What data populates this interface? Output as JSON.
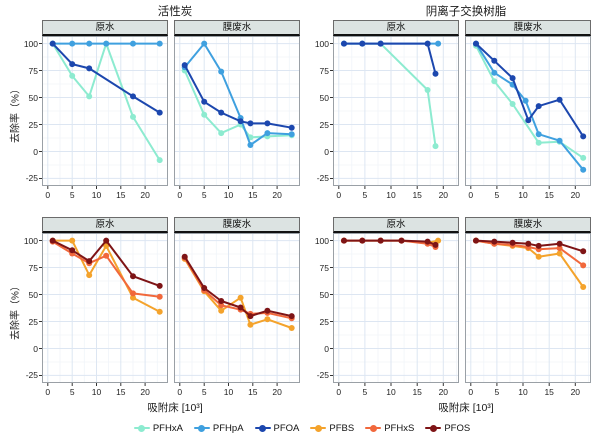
{
  "figure": {
    "group_titles": [
      "活性炭",
      "阴离子交换树脂"
    ],
    "y_axis_label": "去除率（%）",
    "x_axis_label": "吸附床 [10³]",
    "legend": [
      "PFHxA",
      "PFHpA",
      "PFOA",
      "PFBS",
      "PFHxS",
      "PFOS"
    ]
  },
  "chart_data": {
    "type": "line",
    "title_left": "活性炭",
    "title_right": "阴离子交换树脂",
    "ylabel": "去除率（%）",
    "xlabel": "吸附床 [10³]",
    "y_ticks": [
      100,
      75,
      50,
      25,
      0,
      -25
    ],
    "x_ticks": [
      0,
      5,
      10,
      15,
      20
    ],
    "ylim": [
      -32,
      107
    ],
    "grid": true,
    "legend_position": "bottom",
    "palette": {
      "PFHxA": "#8DEBD0",
      "PFHpA": "#3FA0DF",
      "PFOA": "#1C47AE",
      "PFBS": "#F4A32C",
      "PFHxS": "#F1683C",
      "PFOS": "#7E1416"
    },
    "panels": [
      {
        "group": "活性炭",
        "strip": "原水",
        "xlim": [
          -1.2,
          24.7
        ],
        "series": [
          {
            "name": "PFHxA",
            "points": [
              [
                1,
                100
              ],
              [
                5,
                70
              ],
              [
                8.5,
                51
              ],
              [
                12,
                100
              ],
              [
                17.5,
                32
              ],
              [
                23,
                -8
              ]
            ]
          },
          {
            "name": "PFHpA",
            "points": [
              [
                1,
                100
              ],
              [
                5,
                100
              ],
              [
                8.5,
                100
              ],
              [
                12,
                100
              ],
              [
                17.5,
                100
              ],
              [
                23,
                100
              ]
            ]
          },
          {
            "name": "PFOA",
            "points": [
              [
                1,
                100
              ],
              [
                5,
                81
              ],
              [
                8.5,
                77
              ],
              [
                17.5,
                51
              ],
              [
                23,
                36
              ]
            ]
          }
        ]
      },
      {
        "group": "活性炭",
        "strip": "膜废水",
        "xlim": [
          -1.2,
          24.7
        ],
        "series": [
          {
            "name": "PFHxA",
            "points": [
              [
                1,
                75
              ],
              [
                5,
                34
              ],
              [
                8.5,
                17
              ],
              [
                12.5,
                25
              ],
              [
                14.5,
                13
              ],
              [
                18,
                14
              ],
              [
                23,
                15
              ]
            ]
          },
          {
            "name": "PFHpA",
            "points": [
              [
                1,
                78
              ],
              [
                5,
                100
              ],
              [
                8.5,
                74
              ],
              [
                12.5,
                31
              ],
              [
                14.5,
                6
              ],
              [
                18,
                17
              ],
              [
                23,
                16
              ]
            ]
          },
          {
            "name": "PFOA",
            "points": [
              [
                1,
                80
              ],
              [
                5,
                46
              ],
              [
                8.5,
                36
              ],
              [
                12.5,
                28
              ],
              [
                14.5,
                26
              ],
              [
                18,
                26
              ],
              [
                23,
                22
              ]
            ]
          }
        ]
      },
      {
        "group": "阴离子交换树脂",
        "strip": "原水",
        "xlim": [
          -1.1,
          23
        ],
        "series": [
          {
            "name": "PFHxA",
            "points": [
              [
                1,
                100
              ],
              [
                4.5,
                100
              ],
              [
                8,
                100
              ],
              [
                17,
                57
              ],
              [
                18.5,
                5
              ]
            ]
          },
          {
            "name": "PFHpA",
            "points": [
              [
                1,
                100
              ],
              [
                4.5,
                100
              ],
              [
                8,
                100
              ],
              [
                17,
                100
              ],
              [
                19,
                100
              ]
            ]
          },
          {
            "name": "PFOA",
            "points": [
              [
                1,
                100
              ],
              [
                4.5,
                100
              ],
              [
                8,
                100
              ],
              [
                17,
                100
              ],
              [
                18.5,
                72
              ]
            ]
          }
        ]
      },
      {
        "group": "阴离子交换树脂",
        "strip": "膜废水",
        "xlim": [
          -1.1,
          23
        ],
        "series": [
          {
            "name": "PFHxA",
            "points": [
              [
                1,
                98
              ],
              [
                4.5,
                65
              ],
              [
                8,
                44
              ],
              [
                13,
                8
              ],
              [
                17,
                9
              ],
              [
                21.5,
                -6
              ]
            ]
          },
          {
            "name": "PFHpA",
            "points": [
              [
                1,
                100
              ],
              [
                4.5,
                73
              ],
              [
                8,
                62
              ],
              [
                10.5,
                47
              ],
              [
                13,
                16
              ],
              [
                17,
                10
              ],
              [
                21.5,
                -17
              ]
            ]
          },
          {
            "name": "PFOA",
            "points": [
              [
                1,
                100
              ],
              [
                4.5,
                84
              ],
              [
                8,
                68
              ],
              [
                11,
                29
              ],
              [
                13,
                42
              ],
              [
                17,
                48
              ],
              [
                21.5,
                14
              ]
            ]
          }
        ]
      },
      {
        "group": "活性炭",
        "strip": "原水",
        "xlim": [
          -1.2,
          24.7
        ],
        "series": [
          {
            "name": "PFBS",
            "points": [
              [
                1,
                100
              ],
              [
                5,
                100
              ],
              [
                8.5,
                68
              ],
              [
                12,
                95
              ],
              [
                17.5,
                47
              ],
              [
                23,
                34
              ]
            ]
          },
          {
            "name": "PFHxS",
            "points": [
              [
                1,
                99
              ],
              [
                5,
                88
              ],
              [
                8.5,
                79
              ],
              [
                12,
                86
              ],
              [
                17.5,
                51
              ],
              [
                23,
                48
              ]
            ]
          },
          {
            "name": "PFOS",
            "points": [
              [
                1,
                100
              ],
              [
                5,
                91
              ],
              [
                8.5,
                81
              ],
              [
                12,
                100
              ],
              [
                17.5,
                67
              ],
              [
                23,
                58
              ]
            ]
          }
        ]
      },
      {
        "group": "活性炭",
        "strip": "膜废水",
        "xlim": [
          -1.2,
          24.7
        ],
        "series": [
          {
            "name": "PFBS",
            "points": [
              [
                1,
                83
              ],
              [
                5,
                53
              ],
              [
                8.5,
                35
              ],
              [
                12.5,
                47
              ],
              [
                14.5,
                22
              ],
              [
                18,
                27
              ],
              [
                23,
                19
              ]
            ]
          },
          {
            "name": "PFHxS",
            "points": [
              [
                1,
                84
              ],
              [
                5,
                54
              ],
              [
                8.5,
                40
              ],
              [
                12.5,
                36
              ],
              [
                14.5,
                32
              ],
              [
                18,
                33
              ],
              [
                23,
                28
              ]
            ]
          },
          {
            "name": "PFOS",
            "points": [
              [
                1,
                85
              ],
              [
                5,
                56
              ],
              [
                8.5,
                44
              ],
              [
                12.5,
                38
              ],
              [
                14.5,
                30
              ],
              [
                18,
                35
              ],
              [
                23,
                30
              ]
            ]
          }
        ]
      },
      {
        "group": "阴离子交换树脂",
        "strip": "原水",
        "xlim": [
          -1.1,
          23
        ],
        "series": [
          {
            "name": "PFBS",
            "points": [
              [
                1,
                100
              ],
              [
                4.5,
                100
              ],
              [
                8,
                100
              ],
              [
                12,
                100
              ],
              [
                17,
                98
              ],
              [
                19,
                100
              ]
            ]
          },
          {
            "name": "PFHxS",
            "points": [
              [
                1,
                100
              ],
              [
                4.5,
                100
              ],
              [
                8,
                100
              ],
              [
                12,
                100
              ],
              [
                17,
                97
              ],
              [
                18.5,
                94
              ]
            ]
          },
          {
            "name": "PFOS",
            "points": [
              [
                1,
                100
              ],
              [
                4.5,
                100
              ],
              [
                8,
                100
              ],
              [
                12,
                100
              ],
              [
                17,
                99
              ],
              [
                18.5,
                96
              ]
            ]
          }
        ]
      },
      {
        "group": "阴离子交换树脂",
        "strip": "膜废水",
        "xlim": [
          -1.1,
          23
        ],
        "series": [
          {
            "name": "PFBS",
            "points": [
              [
                1,
                100
              ],
              [
                4.5,
                97
              ],
              [
                8,
                95
              ],
              [
                11,
                93
              ],
              [
                13,
                85
              ],
              [
                17,
                88
              ],
              [
                21.5,
                57
              ]
            ]
          },
          {
            "name": "PFHxS",
            "points": [
              [
                1,
                100
              ],
              [
                4.5,
                97
              ],
              [
                8,
                96
              ],
              [
                11,
                94
              ],
              [
                13,
                92
              ],
              [
                17,
                93
              ],
              [
                21.5,
                77
              ]
            ]
          },
          {
            "name": "PFOS",
            "points": [
              [
                1,
                100
              ],
              [
                4.5,
                99
              ],
              [
                8,
                98
              ],
              [
                11,
                97
              ],
              [
                13,
                95
              ],
              [
                17,
                97
              ],
              [
                21.5,
                90
              ]
            ]
          }
        ]
      }
    ]
  }
}
